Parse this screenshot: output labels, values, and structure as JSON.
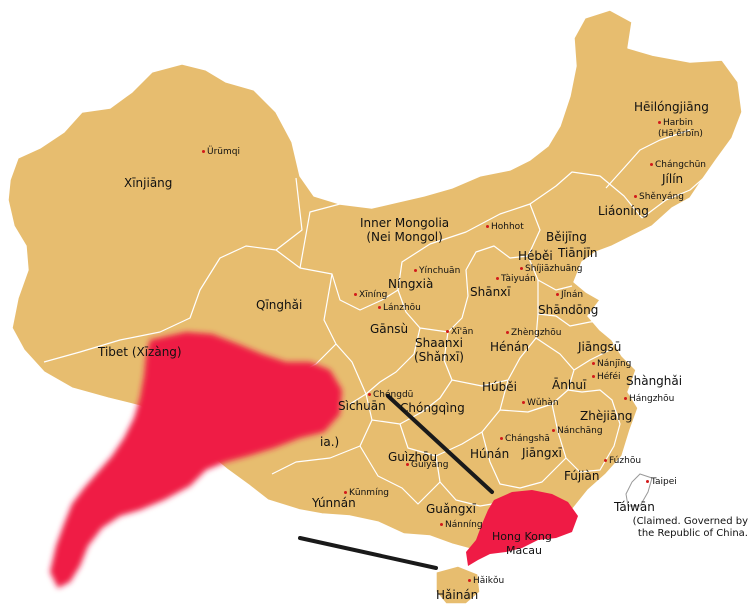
{
  "colors": {
    "land": "#e7bd6f",
    "highlight": "#ef1b45",
    "city_dot": "#d21a1a",
    "pointer": "#1a1a1a",
    "border": "#ffffff"
  },
  "regions": {
    "heilongjiang": "Hēilóngjiāng",
    "jilin": "Jílín",
    "liaoning": "Liáoníng",
    "xinjiang": "Xīnjiāng",
    "inner_mongolia": "Inner Mongolia\n(Nei Mongol)",
    "beijing": "Běijīng",
    "tianjin": "Tiānjīn",
    "hebei": "Héběi",
    "ningxia": "Níngxià",
    "shanxi": "Shānxī",
    "shandong": "Shāndōng",
    "qinghai": "Qīnghǎi",
    "gansu": "Gānsù",
    "shaanxi": "Shaanxi\n(Shǎnxī)",
    "henan": "Hénán",
    "jiangsu": "Jiāngsū",
    "tibet": "Tibet (Xīzàng)",
    "anhui": "Ānhuī",
    "shanghai": "Shànghǎi",
    "sichuan": "Sìchuān",
    "chongqing": "Chóngqìng",
    "hubei": "Húběi",
    "zhejiang": "Zhèjiāng",
    "hunan": "Húnán",
    "jiangxi": "Jiāngxī",
    "guizhou": "Guìzhōu",
    "fujian": "Fújiàn",
    "yunnan": "Yúnnán",
    "guangxi": "Guǎngxī",
    "taiwan": "Táiwān",
    "hainan": "Hǎinán",
    "hong_kong": "Hong Kong",
    "macau": "Macau",
    "tibet_partial": "ia.)"
  },
  "cities": {
    "urumqi": "Ürümqi",
    "harbin": "Harbin\n(Hā'ěrbīn)",
    "changchun": "Chángchūn",
    "shenyang": "Shěnyáng",
    "hohhot": "Hohhot",
    "shijiazhuang": "Shíjiāzhuāng",
    "yinchuan": "Yínchuān",
    "taiyuan": "Tàiyuán",
    "xining": "Xīníng",
    "lanzhou": "Lánzhōu",
    "jinan": "Jǐnán",
    "xian": "Xī'ān",
    "zhengzhou": "Zhèngzhōu",
    "nanjing": "Nánjīng",
    "chengdu": "Chéngdū",
    "hefei": "Héféi",
    "wuhan": "Wǔhàn",
    "hangzhou": "Hángzhōu",
    "changsha": "Chángshā",
    "nanchang": "Nánchāng",
    "guiyang": "Guìyáng",
    "fuzhou": "Fúzhōu",
    "taipei": "Taipei",
    "kunming": "Kūnmíng",
    "nanning": "Nánníng",
    "haikou": "Hǎikǒu"
  },
  "note": "(Claimed. Governed by\nthe Republic of China."
}
